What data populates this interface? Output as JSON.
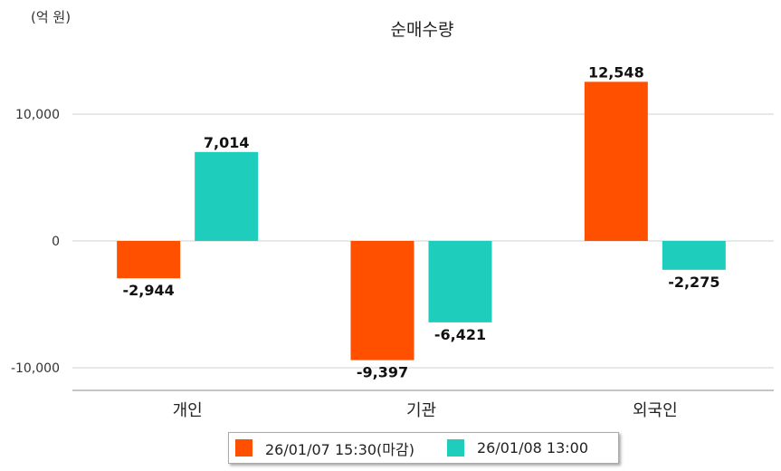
{
  "unit_label": "(억 원)",
  "colors": {
    "series1": "#ff5000",
    "series2": "#1ecdbc",
    "grid": "#d0d0d0",
    "axis": "#888888"
  },
  "chart_data": {
    "type": "bar",
    "title": "순매수량",
    "categories": [
      "개인",
      "기관",
      "외국인"
    ],
    "series": [
      {
        "name": "26/01/07 15:30(마감)",
        "values": [
          -2944,
          -9397,
          12548
        ],
        "labels": [
          "-2,944",
          "-9,397",
          "12,548"
        ]
      },
      {
        "name": "26/01/08 13:00",
        "values": [
          7014,
          -6421,
          -2275
        ],
        "labels": [
          "7,014",
          "-6,421",
          "-2,275"
        ]
      }
    ],
    "yticks": [
      10000,
      0,
      -10000
    ],
    "ytick_labels": [
      "10,000",
      "0",
      "-10,000"
    ],
    "ylim": [
      -11500,
      14500
    ],
    "grid": true,
    "legend_position": "bottom"
  }
}
